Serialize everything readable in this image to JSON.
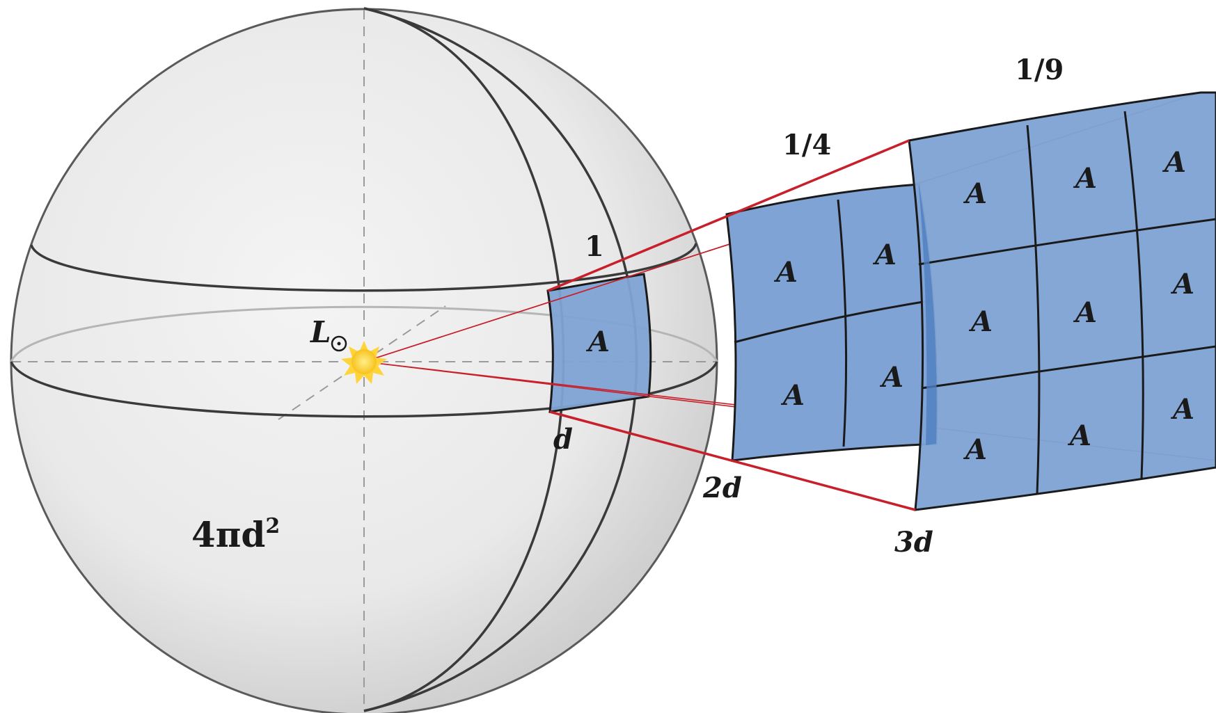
{
  "labels": {
    "source": "L",
    "surface_area": "4πd",
    "surface_area_exp": "2",
    "flux_d": "1",
    "flux_2d": "1/4",
    "flux_3d": "1/9",
    "dist_d": "d",
    "dist_2d": "2d",
    "dist_3d": "3d",
    "patch": "A"
  },
  "colors": {
    "patch_fill": "#7fa3d4",
    "patch_stroke": "#1a1a1a",
    "ray": "#c8202a",
    "sphere_edge": "#555555",
    "sun": "#ffd43a"
  },
  "patch_counts": {
    "d": 1,
    "2d": 4,
    "3d": 9
  }
}
